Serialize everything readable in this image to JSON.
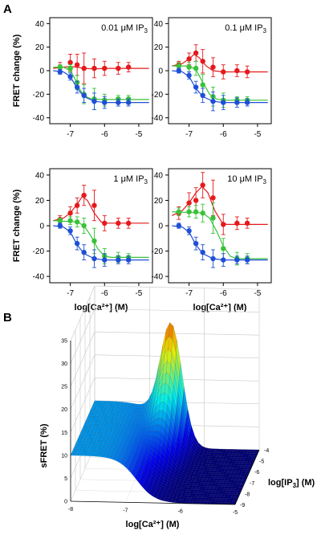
{
  "panel_a_letter": "A",
  "panel_b_letter": "B",
  "chart_data": [
    {
      "type": "line",
      "panel": "A",
      "title": "0.01 μM IP3",
      "title_main": "0.01 μM IP",
      "title_sub": "3",
      "ylabel": "FRET change (%)",
      "xlabel": "",
      "xlim": [
        -7.6,
        -4.6
      ],
      "ylim": [
        -45,
        45
      ],
      "xticks": [
        -7,
        -6,
        -5
      ],
      "yticks": [
        40,
        20,
        0,
        -20,
        -40
      ],
      "series": [
        {
          "color": "#e41a1c",
          "points": [
            [
              -7.3,
              3,
              4
            ],
            [
              -7.0,
              7,
              7
            ],
            [
              -6.8,
              5,
              9
            ],
            [
              -6.6,
              2,
              13
            ],
            [
              -6.3,
              2,
              8
            ],
            [
              -6.0,
              2,
              6
            ],
            [
              -5.6,
              2,
              5
            ],
            [
              -5.3,
              3,
              4
            ]
          ],
          "curve": [
            [
              -7.5,
              2
            ],
            [
              -7.2,
              3
            ],
            [
              -7.0,
              3.5
            ],
            [
              -6.8,
              3
            ],
            [
              -6.6,
              2
            ],
            [
              -6.3,
              1.5
            ],
            [
              -6.0,
              2
            ],
            [
              -4.7,
              2
            ]
          ]
        },
        {
          "color": "#39c239",
          "points": [
            [
              -7.3,
              3,
              2
            ],
            [
              -7.0,
              2,
              3
            ],
            [
              -6.8,
              -10,
              6
            ],
            [
              -6.6,
              -20,
              8
            ],
            [
              -6.3,
              -24,
              9
            ],
            [
              -6.0,
              -25,
              5
            ],
            [
              -5.6,
              -24,
              3
            ],
            [
              -5.3,
              -24,
              3
            ]
          ],
          "curve": [
            [
              -7.5,
              3
            ],
            [
              -7.2,
              3
            ],
            [
              -7.0,
              0
            ],
            [
              -6.9,
              -5
            ],
            [
              -6.8,
              -11
            ],
            [
              -6.7,
              -17
            ],
            [
              -6.6,
              -21
            ],
            [
              -6.4,
              -24
            ],
            [
              -6.0,
              -24.5
            ],
            [
              -4.7,
              -24.5
            ]
          ]
        },
        {
          "color": "#1f4fd6",
          "points": [
            [
              -7.3,
              -1,
              2
            ],
            [
              -7.0,
              -5,
              3
            ],
            [
              -6.8,
              -14,
              5
            ],
            [
              -6.6,
              -21,
              6
            ],
            [
              -6.3,
              -26,
              7
            ],
            [
              -6.0,
              -27,
              5
            ],
            [
              -5.6,
              -27,
              3
            ],
            [
              -5.3,
              -27,
              3
            ]
          ],
          "curve": [
            [
              -7.5,
              0
            ],
            [
              -7.2,
              -1
            ],
            [
              -7.0,
              -5
            ],
            [
              -6.9,
              -10
            ],
            [
              -6.8,
              -15
            ],
            [
              -6.6,
              -22
            ],
            [
              -6.3,
              -26
            ],
            [
              -6.0,
              -27
            ],
            [
              -4.7,
              -27
            ]
          ]
        }
      ]
    },
    {
      "type": "line",
      "panel": "A",
      "title": "0.1 μM IP3",
      "title_main": "0.1 μM IP",
      "title_sub": "3",
      "ylabel": "",
      "xlabel": "",
      "xlim": [
        -7.6,
        -4.6
      ],
      "ylim": [
        -45,
        45
      ],
      "xticks": [
        -7,
        -6,
        -5
      ],
      "yticks": [
        40,
        20,
        0,
        -20,
        -40
      ],
      "series": [
        {
          "color": "#e41a1c",
          "points": [
            [
              -7.3,
              5,
              3
            ],
            [
              -7.0,
              10,
              5
            ],
            [
              -6.8,
              15,
              7
            ],
            [
              -6.6,
              8,
              10
            ],
            [
              -6.3,
              3,
              8
            ],
            [
              -6.0,
              -1,
              6
            ],
            [
              -5.6,
              0,
              5
            ],
            [
              -5.3,
              -1,
              5
            ]
          ],
          "curve": [
            [
              -7.5,
              4
            ],
            [
              -7.2,
              6
            ],
            [
              -7.0,
              10
            ],
            [
              -6.85,
              14
            ],
            [
              -6.7,
              11
            ],
            [
              -6.5,
              4
            ],
            [
              -6.3,
              0
            ],
            [
              -6.0,
              -1
            ],
            [
              -4.7,
              -1
            ]
          ]
        },
        {
          "color": "#39c239",
          "points": [
            [
              -7.3,
              4,
              3
            ],
            [
              -7.0,
              3,
              4
            ],
            [
              -6.8,
              2,
              6
            ],
            [
              -6.6,
              -12,
              9
            ],
            [
              -6.3,
              -22,
              8
            ],
            [
              -6.0,
              -25,
              6
            ],
            [
              -5.6,
              -25,
              3
            ],
            [
              -5.3,
              -25,
              3
            ]
          ],
          "curve": [
            [
              -7.5,
              4
            ],
            [
              -7.0,
              4
            ],
            [
              -6.8,
              1
            ],
            [
              -6.6,
              -10
            ],
            [
              -6.4,
              -20
            ],
            [
              -6.2,
              -24
            ],
            [
              -6.0,
              -25
            ],
            [
              -4.7,
              -25
            ]
          ]
        },
        {
          "color": "#1f4fd6",
          "points": [
            [
              -7.3,
              0,
              2
            ],
            [
              -7.0,
              -4,
              3
            ],
            [
              -6.8,
              -14,
              5
            ],
            [
              -6.6,
              -21,
              6
            ],
            [
              -6.3,
              -26,
              8
            ],
            [
              -6.0,
              -27,
              6
            ],
            [
              -5.6,
              -27,
              4
            ],
            [
              -5.3,
              -27,
              3
            ]
          ],
          "curve": [
            [
              -7.5,
              0
            ],
            [
              -7.2,
              -1
            ],
            [
              -7.0,
              -5
            ],
            [
              -6.9,
              -10
            ],
            [
              -6.8,
              -15
            ],
            [
              -6.6,
              -22
            ],
            [
              -6.3,
              -26
            ],
            [
              -6.0,
              -27
            ],
            [
              -4.7,
              -27
            ]
          ]
        }
      ]
    },
    {
      "type": "line",
      "panel": "A",
      "title": "1 μM IP3",
      "title_main": "1 μM IP",
      "title_sub": "3",
      "ylabel": "FRET change (%)",
      "xlabel": "log[Ca²⁺] (M)",
      "xlim": [
        -7.6,
        -4.6
      ],
      "ylim": [
        -45,
        45
      ],
      "xticks": [
        -7,
        -6,
        -5
      ],
      "yticks": [
        40,
        20,
        0,
        -20,
        -40
      ],
      "series": [
        {
          "color": "#e41a1c",
          "points": [
            [
              -7.3,
              5,
              3
            ],
            [
              -7.0,
              10,
              5
            ],
            [
              -6.8,
              16,
              6
            ],
            [
              -6.6,
              24,
              8
            ],
            [
              -6.3,
              16,
              12
            ],
            [
              -6.0,
              2,
              6
            ],
            [
              -5.6,
              2,
              4
            ],
            [
              -5.3,
              2,
              4
            ]
          ],
          "curve": [
            [
              -7.5,
              4
            ],
            [
              -7.2,
              6
            ],
            [
              -7.0,
              10
            ],
            [
              -6.8,
              17
            ],
            [
              -6.65,
              23
            ],
            [
              -6.5,
              20
            ],
            [
              -6.3,
              10
            ],
            [
              -6.1,
              3
            ],
            [
              -5.9,
              2
            ],
            [
              -4.7,
              2
            ]
          ]
        },
        {
          "color": "#39c239",
          "points": [
            [
              -7.3,
              4,
              2
            ],
            [
              -7.0,
              4,
              3
            ],
            [
              -6.8,
              3,
              4
            ],
            [
              -6.6,
              0,
              6
            ],
            [
              -6.3,
              -12,
              10
            ],
            [
              -6.0,
              -24,
              6
            ],
            [
              -5.6,
              -25,
              4
            ],
            [
              -5.3,
              -25,
              3
            ]
          ],
          "curve": [
            [
              -7.5,
              4
            ],
            [
              -6.8,
              3
            ],
            [
              -6.6,
              0
            ],
            [
              -6.4,
              -8
            ],
            [
              -6.2,
              -18
            ],
            [
              -6.0,
              -24
            ],
            [
              -5.8,
              -25
            ],
            [
              -4.7,
              -25
            ]
          ]
        },
        {
          "color": "#1f4fd6",
          "points": [
            [
              -7.3,
              0,
              2
            ],
            [
              -7.0,
              -4,
              3
            ],
            [
              -6.8,
              -14,
              5
            ],
            [
              -6.6,
              -21,
              6
            ],
            [
              -6.3,
              -26,
              7
            ],
            [
              -6.0,
              -27,
              5
            ],
            [
              -5.6,
              -27,
              3
            ],
            [
              -5.3,
              -27,
              3
            ]
          ],
          "curve": [
            [
              -7.5,
              0
            ],
            [
              -7.2,
              -1
            ],
            [
              -7.0,
              -5
            ],
            [
              -6.9,
              -10
            ],
            [
              -6.8,
              -15
            ],
            [
              -6.6,
              -22
            ],
            [
              -6.3,
              -26
            ],
            [
              -6.0,
              -27
            ],
            [
              -4.7,
              -27
            ]
          ]
        }
      ]
    },
    {
      "type": "line",
      "panel": "A",
      "title": "10 μM IP3",
      "title_main": "10 μM IP",
      "title_sub": "3",
      "ylabel": "",
      "xlabel": "log[Ca²⁺] (M)",
      "xlim": [
        -7.6,
        -4.6
      ],
      "ylim": [
        -45,
        45
      ],
      "xticks": [
        -7,
        -6,
        -5
      ],
      "yticks": [
        40,
        20,
        0,
        -20,
        -40
      ],
      "series": [
        {
          "color": "#e41a1c",
          "points": [
            [
              -7.3,
              10,
              5
            ],
            [
              -7.0,
              18,
              8
            ],
            [
              -6.8,
              20,
              10
            ],
            [
              -6.6,
              32,
              10
            ],
            [
              -6.3,
              22,
              14
            ],
            [
              -6.0,
              1,
              8
            ],
            [
              -5.6,
              2,
              5
            ],
            [
              -5.3,
              2,
              4
            ]
          ],
          "curve": [
            [
              -7.5,
              8
            ],
            [
              -7.2,
              12
            ],
            [
              -7.0,
              18
            ],
            [
              -6.8,
              26
            ],
            [
              -6.62,
              31
            ],
            [
              -6.45,
              26
            ],
            [
              -6.25,
              12
            ],
            [
              -6.05,
              3
            ],
            [
              -5.9,
              1
            ],
            [
              -4.7,
              1
            ]
          ]
        },
        {
          "color": "#39c239",
          "points": [
            [
              -7.3,
              11,
              3
            ],
            [
              -7.0,
              11,
              4
            ],
            [
              -6.8,
              11,
              5
            ],
            [
              -6.6,
              10,
              7
            ],
            [
              -6.3,
              6,
              12
            ],
            [
              -6.0,
              -18,
              8
            ],
            [
              -5.6,
              -26,
              5
            ],
            [
              -5.3,
              -26,
              4
            ]
          ],
          "curve": [
            [
              -7.5,
              11
            ],
            [
              -6.6,
              10
            ],
            [
              -6.4,
              6
            ],
            [
              -6.2,
              -4
            ],
            [
              -6.0,
              -16
            ],
            [
              -5.8,
              -24
            ],
            [
              -5.6,
              -26
            ],
            [
              -4.7,
              -26
            ]
          ]
        },
        {
          "color": "#1f4fd6",
          "points": [
            [
              -7.3,
              0,
              2
            ],
            [
              -7.0,
              -4,
              3
            ],
            [
              -6.8,
              -14,
              5
            ],
            [
              -6.6,
              -21,
              6
            ],
            [
              -6.3,
              -26,
              7
            ],
            [
              -6.0,
              -27,
              5
            ],
            [
              -5.6,
              -27,
              3
            ],
            [
              -5.3,
              -27,
              3
            ]
          ],
          "curve": [
            [
              -7.5,
              0
            ],
            [
              -7.2,
              -1
            ],
            [
              -7.0,
              -5
            ],
            [
              -6.9,
              -10
            ],
            [
              -6.8,
              -15
            ],
            [
              -6.6,
              -22
            ],
            [
              -6.3,
              -26
            ],
            [
              -6.0,
              -27
            ],
            [
              -4.7,
              -27
            ]
          ]
        }
      ]
    },
    {
      "type": "surface",
      "panel": "B",
      "title": "",
      "zlabel": "sFRET (%)",
      "xlabel": "log[Ca²⁺] (M)",
      "ylabel_main": "log[IP",
      "ylabel_sub": "3",
      "ylabel_end": "] (M)",
      "ylabel": "log[IP3] (M)",
      "x_range": [
        -8,
        -5
      ],
      "y_range": [
        -9,
        -4
      ],
      "z_range": [
        0,
        35
      ],
      "xticks": [
        -8,
        -7,
        -6,
        -5
      ],
      "yticks": [
        -4,
        -5,
        -6,
        -7,
        -8,
        -9
      ],
      "zticks": [
        0,
        5,
        10,
        15,
        20,
        25,
        30,
        35
      ],
      "peak": {
        "x": -6.6,
        "y": -4,
        "z": 33
      }
    }
  ]
}
